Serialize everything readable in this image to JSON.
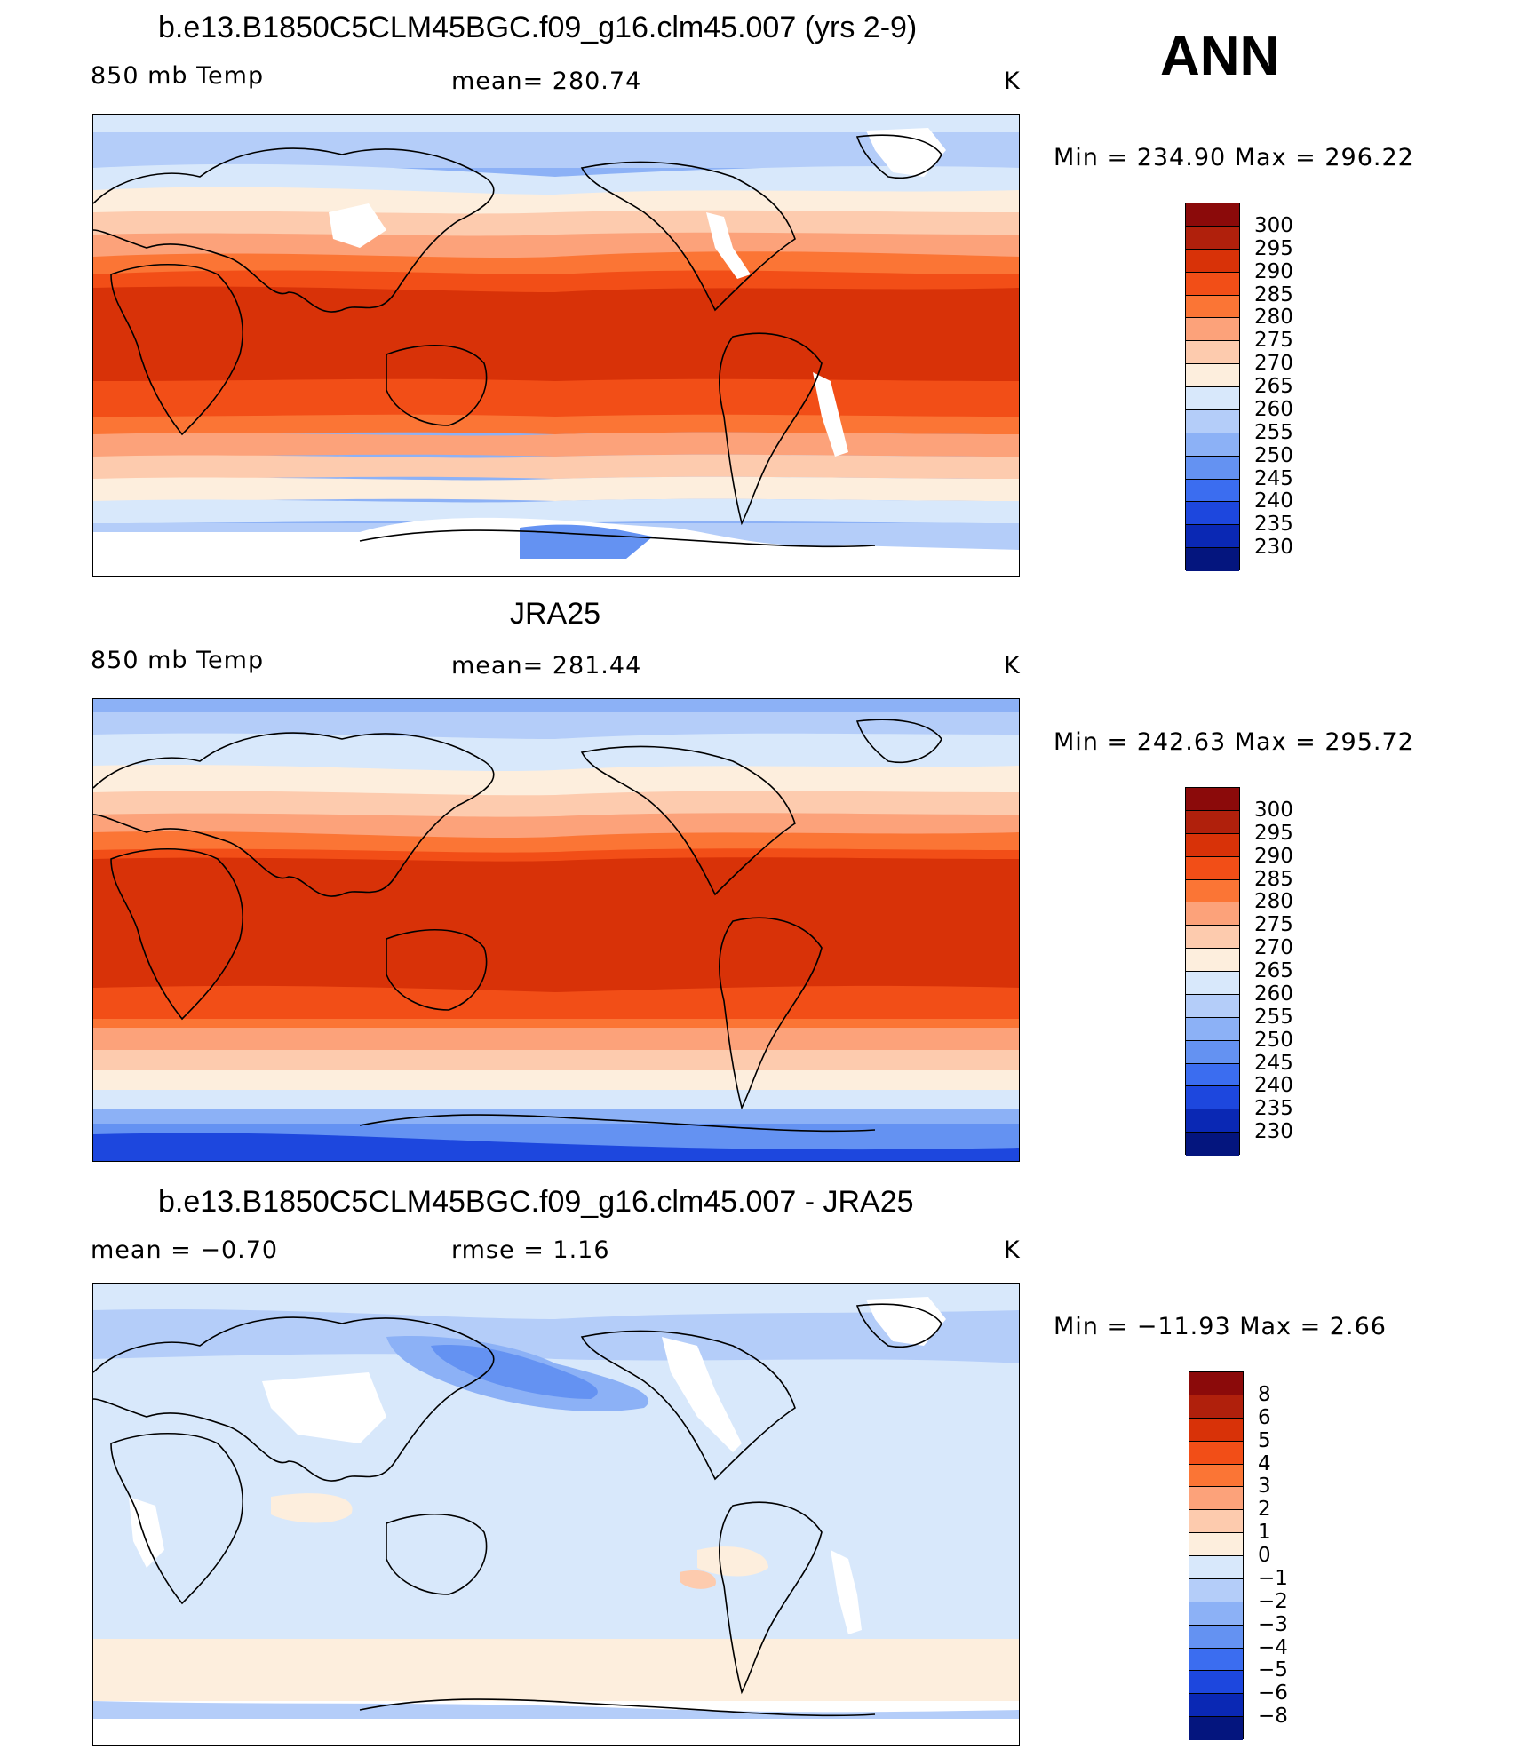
{
  "season_label": "ANN",
  "panels": [
    {
      "title": "b.e13.B1850C5CLM45BGC.f09_g16.clm45.007 (yrs 2-9)",
      "left_label": "850 mb Temp",
      "center_label": "mean= 280.74",
      "units": "K",
      "minmax": "Min = 234.90 Max = 296.22",
      "colorbar_ticks": [
        "300",
        "295",
        "290",
        "285",
        "280",
        "275",
        "270",
        "265",
        "260",
        "255",
        "250",
        "245",
        "240",
        "235",
        "230"
      ]
    },
    {
      "title": "JRA25",
      "left_label": "850 mb Temp",
      "center_label": "mean= 281.44",
      "units": "K",
      "minmax": "Min = 242.63 Max = 295.72",
      "colorbar_ticks": [
        "300",
        "295",
        "290",
        "285",
        "280",
        "275",
        "270",
        "265",
        "260",
        "255",
        "250",
        "245",
        "240",
        "235",
        "230"
      ]
    },
    {
      "title": "b.e13.B1850C5CLM45BGC.f09_g16.clm45.007 - JRA25",
      "left_label": "mean =   −0.70",
      "center_label": "rmse =    1.16",
      "units": "K",
      "minmax": "Min = −11.93 Max =    2.66",
      "colorbar_ticks": [
        "8",
        "6",
        "5",
        "4",
        "3",
        "2",
        "1",
        "0",
        "−1",
        "−2",
        "−3",
        "−4",
        "−5",
        "−6",
        "−8"
      ]
    }
  ],
  "colors": {
    "temp_scale": [
      "#8b0a0a",
      "#b0200c",
      "#d83208",
      "#f24e17",
      "#fb7535",
      "#fca27a",
      "#fdcbae",
      "#fdeedd",
      "#d8e8fb",
      "#b4cdf9",
      "#8cb1f6",
      "#6492f2",
      "#3b6df0",
      "#1d47de",
      "#0a28b4",
      "#04157e"
    ],
    "diff_scale": [
      "#8b0a0a",
      "#b0200c",
      "#d83208",
      "#f24e17",
      "#fb7535",
      "#fca27a",
      "#fdcbae",
      "#fdeedd",
      "#d8e8fb",
      "#b4cdf9",
      "#8cb1f6",
      "#6492f2",
      "#3b6df0",
      "#1d47de",
      "#0a28b4",
      "#04157e"
    ]
  }
}
